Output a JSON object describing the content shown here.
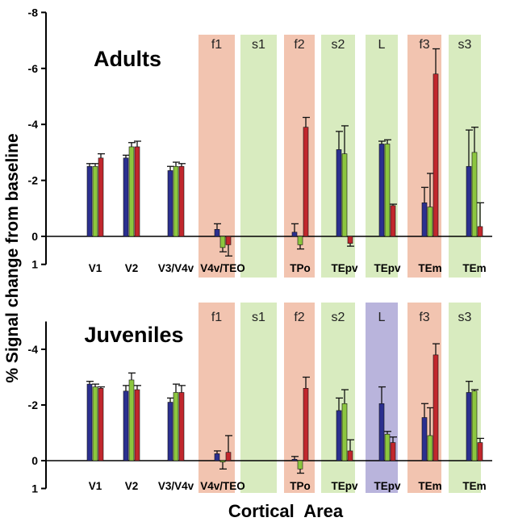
{
  "page": {
    "ylabel": "% Signal change from baseline",
    "xlabel": "Cortical  Area"
  },
  "colors": {
    "series_blue": "#2b2f8f",
    "series_green": "#8cc63f",
    "series_red": "#c1272d",
    "band_face": "#f2c4b0",
    "band_scene": "#d8ebbf",
    "band_lip": "#b9b4dc",
    "axis": "#000000"
  },
  "chart_data": [
    {
      "type": "bar",
      "title": "Adults",
      "y_axis_inverted": true,
      "ylim": [
        1,
        -8
      ],
      "yticks": [
        -8,
        -6,
        -4,
        -2,
        0,
        1
      ],
      "yticklabels": [
        "-8",
        "-6",
        "-4",
        "-2",
        "0",
        "1"
      ],
      "categories": [
        "V1",
        "V2",
        "V3/V4v",
        "V4v/TEO",
        "TPo",
        "TEpv",
        "TEpv",
        "TEm",
        "TEm"
      ],
      "bands": [
        {
          "label": "f1",
          "kind": "face"
        },
        {
          "label": "s1",
          "kind": "scene"
        },
        {
          "label": "f2",
          "kind": "face"
        },
        {
          "label": "s2",
          "kind": "scene"
        },
        {
          "label": "L",
          "kind": "scene"
        },
        {
          "label": "f3",
          "kind": "face"
        },
        {
          "label": "s3",
          "kind": "scene"
        }
      ],
      "series": [
        {
          "values": [
            -2.5,
            -2.8,
            -2.35,
            -0.25,
            -0.15,
            -3.1,
            -3.3,
            -1.2,
            -2.5
          ],
          "errors": [
            0.1,
            0.1,
            0.15,
            0.2,
            0.3,
            0.65,
            0.1,
            0.55,
            1.3
          ]
        },
        {
          "values": [
            -2.5,
            -3.2,
            -2.5,
            0.4,
            0.3,
            -2.95,
            -3.3,
            -1.05,
            -3.0
          ],
          "errors": [
            0.1,
            0.15,
            0.15,
            0.15,
            0.15,
            1.0,
            0.15,
            1.2,
            0.9
          ]
        },
        {
          "values": [
            -2.8,
            -3.2,
            -2.5,
            0.3,
            -3.9,
            0.25,
            -1.1,
            -5.8,
            -0.35
          ],
          "errors": [
            0.15,
            0.2,
            0.1,
            0.4,
            0.35,
            0.1,
            0.05,
            0.9,
            0.85
          ]
        }
      ]
    },
    {
      "type": "bar",
      "title": "Juveniles",
      "y_axis_inverted": true,
      "ylim": [
        1,
        -5
      ],
      "yticks": [
        -4,
        -2,
        0,
        1
      ],
      "yticklabels": [
        "-4",
        "-2",
        "0",
        "1"
      ],
      "categories": [
        "V1",
        "V2",
        "V3/V4v",
        "V4v/TEO",
        "TPo",
        "TEpv",
        "TEpv",
        "TEm",
        "TEm"
      ],
      "bands": [
        {
          "label": "f1",
          "kind": "face"
        },
        {
          "label": "s1",
          "kind": "scene"
        },
        {
          "label": "f2",
          "kind": "face"
        },
        {
          "label": "s2",
          "kind": "scene"
        },
        {
          "label": "L",
          "kind": "lip"
        },
        {
          "label": "f3",
          "kind": "face"
        },
        {
          "label": "s3",
          "kind": "scene"
        }
      ],
      "series": [
        {
          "values": [
            -2.75,
            -2.5,
            -2.1,
            -0.25,
            -0.05,
            -1.8,
            -2.05,
            -1.55,
            -2.45
          ],
          "errors": [
            0.1,
            0.2,
            0.15,
            0.1,
            0.1,
            0.45,
            0.6,
            0.5,
            0.4
          ]
        },
        {
          "values": [
            -2.65,
            -2.9,
            -2.45,
            0.05,
            0.3,
            -2.05,
            -0.95,
            -0.9,
            -2.5
          ],
          "errors": [
            0.1,
            0.25,
            0.3,
            0.25,
            0.15,
            0.5,
            0.1,
            1.0,
            0.05
          ]
        },
        {
          "values": [
            -2.6,
            -2.55,
            -2.45,
            -0.3,
            -2.6,
            -0.35,
            -0.65,
            -3.8,
            -0.65
          ],
          "errors": [
            0.05,
            0.15,
            0.25,
            0.6,
            0.4,
            0.4,
            0.2,
            0.4,
            0.15
          ]
        }
      ]
    }
  ]
}
